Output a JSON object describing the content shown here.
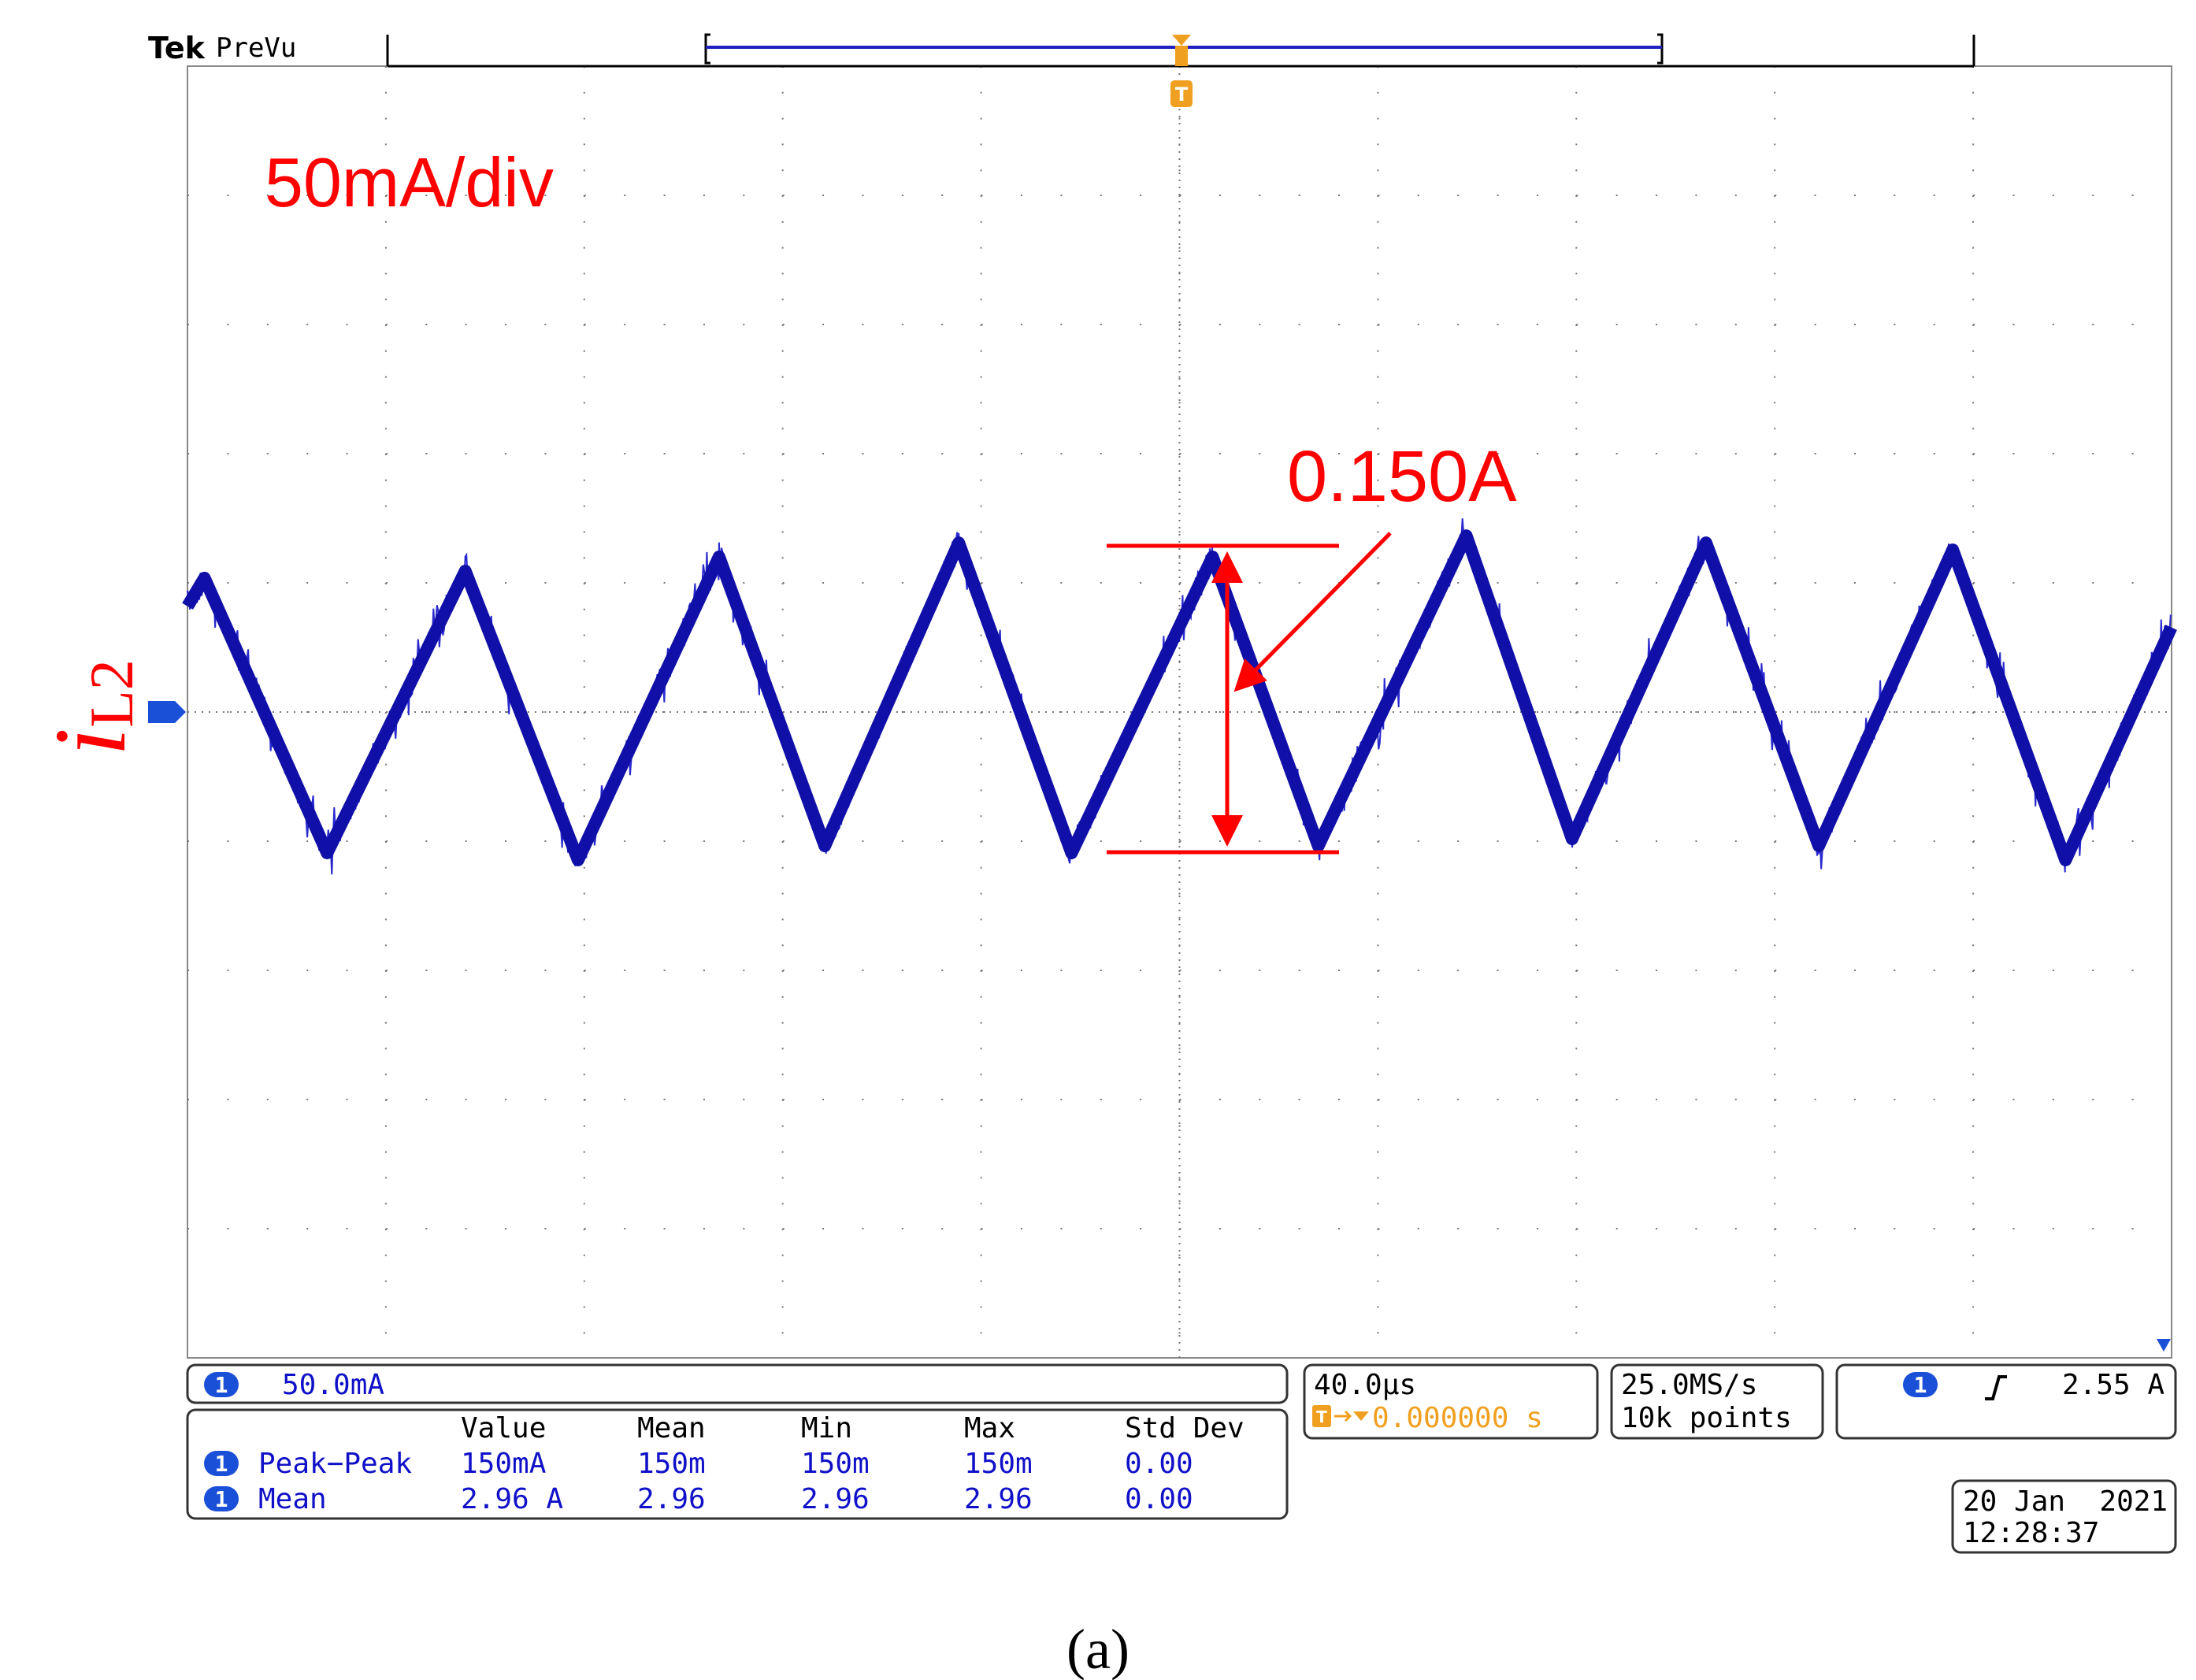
{
  "header": {
    "brand": "Tek",
    "mode": "PreVu"
  },
  "annotations": {
    "scale": "50mA/div",
    "ripple": "0.150A",
    "signal": "i",
    "signal_sub": "L2"
  },
  "channel": {
    "number": "1",
    "scale": "50.0mA"
  },
  "measurements": {
    "columns": [
      "Value",
      "Mean",
      "Min",
      "Max",
      "Std Dev"
    ],
    "rows": [
      {
        "badge": "1",
        "name": "Peak−Peak",
        "cells": [
          "150mA",
          "150m",
          "150m",
          "150m",
          "0.00"
        ]
      },
      {
        "badge": "1",
        "name": "Mean",
        "cells": [
          "2.96 A",
          "2.96",
          "2.96",
          "2.96",
          "0.00"
        ]
      }
    ]
  },
  "timebase": {
    "scale": "40.0µs",
    "offset": "0.000000 s"
  },
  "acquisition": {
    "rate": "25.0MS/s",
    "points": "10k points"
  },
  "trigger": {
    "channel": "1",
    "level": "2.55 A"
  },
  "datetime": {
    "date": "20 Jan  2021",
    "time": "12:28:37"
  },
  "caption": "(a)"
}
